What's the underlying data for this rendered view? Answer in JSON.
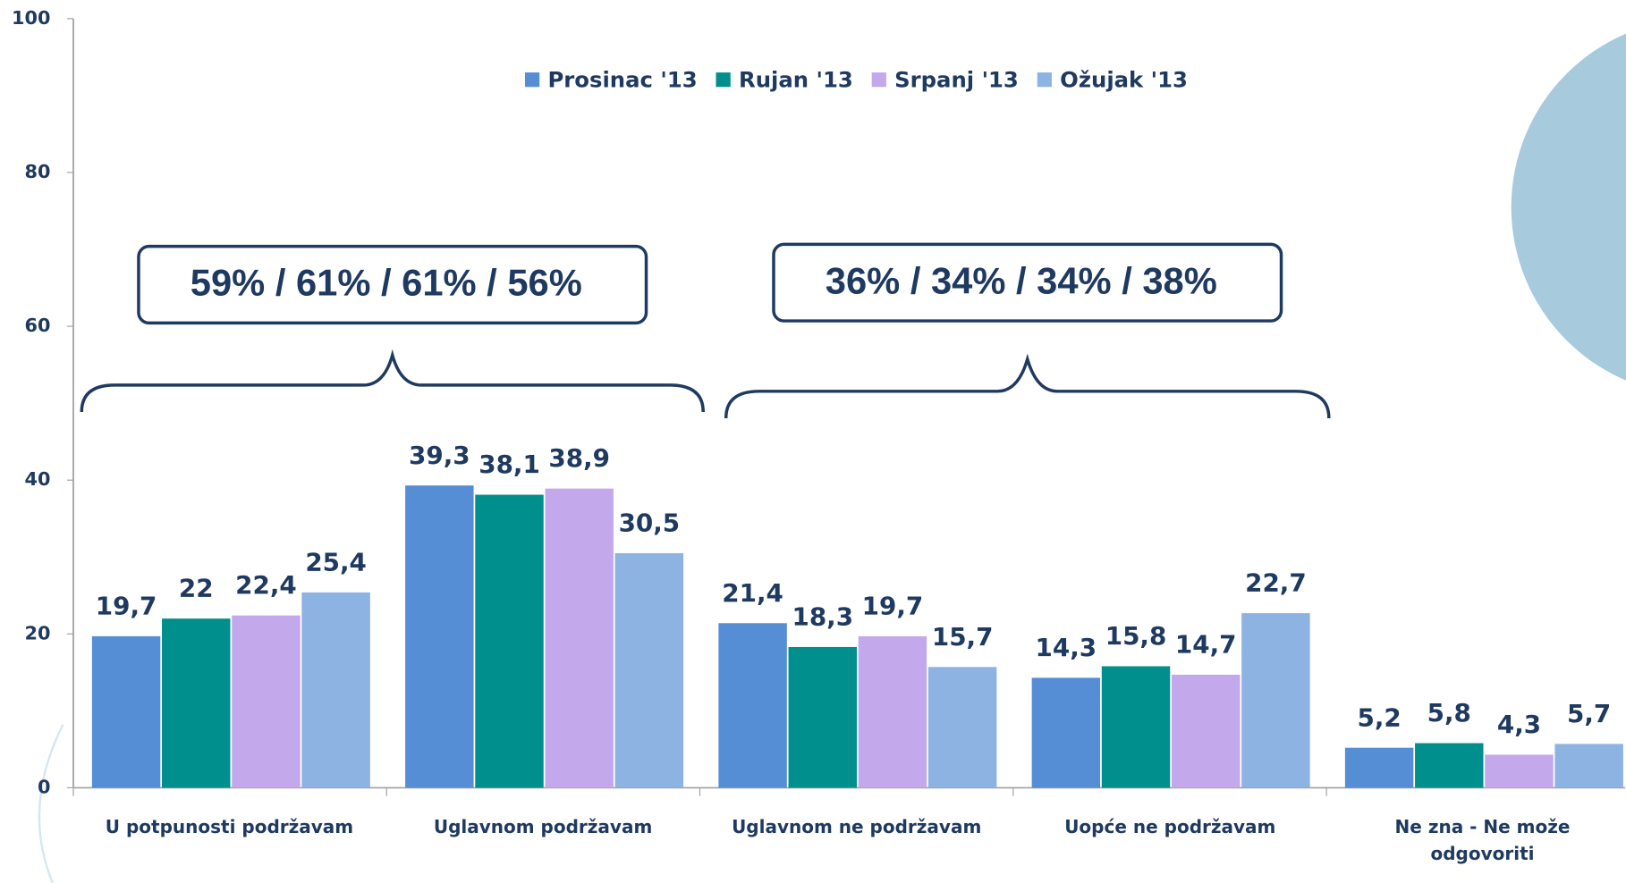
{
  "chart_data": {
    "type": "bar",
    "categories": [
      "U potpunosti podržavam",
      "Uglavnom podržavam",
      "Uglavnom ne podržavam",
      "Uopće ne podržavam",
      "Ne zna - Ne može odgovoriti"
    ],
    "series": [
      {
        "name": "Prosinac '13",
        "color": "#558ed5",
        "values": [
          19.7,
          39.3,
          21.4,
          14.3,
          5.2
        ],
        "value_labels": [
          "19,7",
          "39,3",
          "21,4",
          "14,3",
          "5,2"
        ]
      },
      {
        "name": "Rujan '13",
        "color": "#008f8c",
        "values": [
          22,
          38.1,
          18.3,
          15.8,
          5.8
        ],
        "value_labels": [
          "22",
          "38,1",
          "18,3",
          "15,8",
          "5,8"
        ]
      },
      {
        "name": "Srpanj '13",
        "color": "#c3a9ec",
        "values": [
          22.4,
          38.9,
          19.7,
          14.7,
          4.3
        ],
        "value_labels": [
          "22,4",
          "38,9",
          "19,7",
          "14,7",
          "4,3"
        ]
      },
      {
        "name": "Ožujak '13",
        "color": "#8db3e2",
        "values": [
          25.4,
          30.5,
          15.7,
          22.7,
          5.7
        ],
        "value_labels": [
          "25,4",
          "30,5",
          "15,7",
          "22,7",
          "5,7"
        ]
      }
    ],
    "ylim": [
      0,
      100
    ],
    "yticks": [
      0,
      20,
      40,
      60,
      80,
      100
    ],
    "grid": false,
    "legend": "top",
    "annotations": [
      "59% / 61% / 61% / 56%",
      "36% / 34% / 34% / 38%"
    ]
  }
}
